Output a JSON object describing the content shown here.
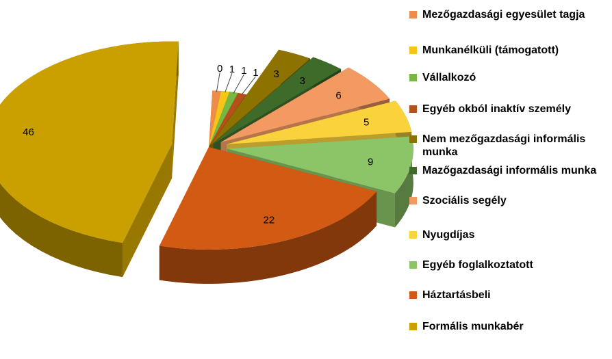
{
  "chart_data": {
    "type": "pie",
    "title": "",
    "legend_position": "right",
    "series": [
      {
        "label": "Mezőgazdasági egyesület tagja",
        "value": 0,
        "color": "#f08c4a"
      },
      {
        "label": "Munkanélküli (támogatott)",
        "value": 1,
        "color": "#f5c518"
      },
      {
        "label": "Vállalkozó",
        "value": 1,
        "color": "#77b843"
      },
      {
        "label": "Egyéb okból inaktív személy",
        "value": 1,
        "color": "#b5501a"
      },
      {
        "label": "Nem mezőgazdasági informális munka",
        "value": 3,
        "color": "#8d7200"
      },
      {
        "label": "Mazőgazdasági informális munka",
        "value": 3,
        "color": "#3e6b2a"
      },
      {
        "label": "Szociális segély",
        "value": 6,
        "color": "#f39a63"
      },
      {
        "label": "Nyugdíjas",
        "value": 5,
        "color": "#f9d23c"
      },
      {
        "label": "Egyéb foglalkoztatott",
        "value": 9,
        "color": "#8cc567"
      },
      {
        "label": "Háztartásbeli",
        "value": 22,
        "color": "#d25a12"
      },
      {
        "label": "Formális munkabér",
        "value": 46,
        "color": "#caa000"
      }
    ]
  }
}
